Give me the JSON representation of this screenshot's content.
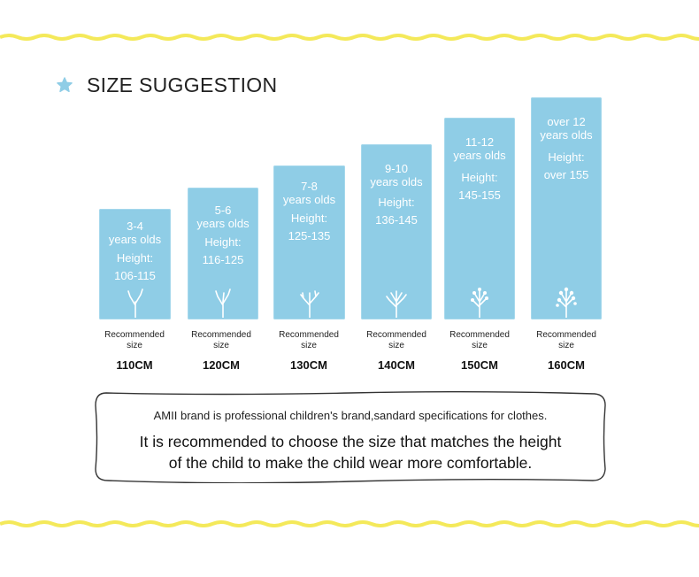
{
  "heading": {
    "title": "SIZE SUGGESTION",
    "icon": "star-icon"
  },
  "colors": {
    "card": "#8fcde6",
    "wave": "#f4e95a"
  },
  "sizes": [
    {
      "age_range": "3-4",
      "age_unit": "years olds",
      "height_label": "Height:",
      "height_range": "106-115",
      "rec_line1": "Recommended",
      "rec_line2": "size",
      "size": "110CM"
    },
    {
      "age_range": "5-6",
      "age_unit": "years olds",
      "height_label": "Height:",
      "height_range": "116-125",
      "rec_line1": "Recommended",
      "rec_line2": "size",
      "size": "120CM"
    },
    {
      "age_range": "7-8",
      "age_unit": "years olds",
      "height_label": "Height:",
      "height_range": "125-135",
      "rec_line1": "Recommended",
      "rec_line2": "size",
      "size": "130CM"
    },
    {
      "age_range": "9-10",
      "age_unit": "years olds",
      "height_label": "Height:",
      "height_range": "136-145",
      "rec_line1": "Recommended",
      "rec_line2": "size",
      "size": "140CM"
    },
    {
      "age_range": "11-12",
      "age_unit": "years olds",
      "height_label": "Height:",
      "height_range": "145-155",
      "rec_line1": "Recommended",
      "rec_line2": "size",
      "size": "150CM"
    },
    {
      "age_range": "over 12",
      "age_unit": "years olds",
      "height_label": "Height:",
      "height_range": "over 155",
      "rec_line1": "Recommended",
      "rec_line2": "size",
      "size": "160CM"
    }
  ],
  "note": {
    "line1": "AMII brand is professional children's brand,sandard specifications for clothes.",
    "line2a": "It is recommended to choose the size that matches the height",
    "line2b": "of the child to make the child wear more comfortable."
  }
}
